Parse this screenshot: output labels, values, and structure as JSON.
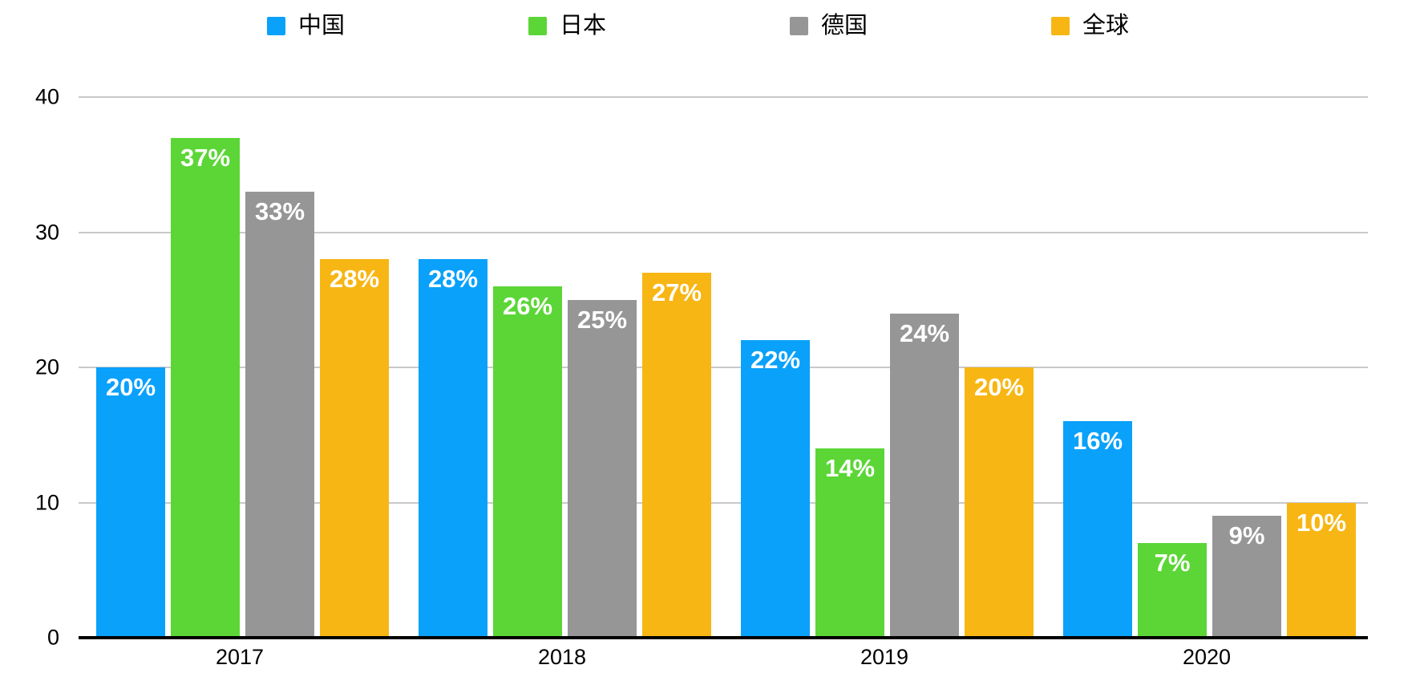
{
  "chart_data": {
    "type": "bar",
    "title": "",
    "xlabel": "",
    "ylabel": "",
    "categories": [
      "2017",
      "2018",
      "2019",
      "2020"
    ],
    "series": [
      {
        "name": "中国",
        "color": "#0AA1FB",
        "values": [
          20,
          28,
          22,
          16
        ],
        "value_labels": [
          "20%",
          "28%",
          "22%",
          "16%"
        ]
      },
      {
        "name": "日本",
        "color": "#5BD636",
        "values": [
          37,
          26,
          14,
          7
        ],
        "value_labels": [
          "37%",
          "26%",
          "14%",
          "7%"
        ]
      },
      {
        "name": "德国",
        "color": "#969696",
        "values": [
          33,
          25,
          24,
          9
        ],
        "value_labels": [
          "33%",
          "25%",
          "24%",
          "9%"
        ]
      },
      {
        "name": "全球",
        "color": "#F7B614",
        "values": [
          28,
          27,
          20,
          10
        ],
        "value_labels": [
          "28%",
          "27%",
          "20%",
          "10%"
        ]
      }
    ],
    "ylim": [
      0,
      40
    ],
    "yticks": [
      0,
      10,
      20,
      30,
      40
    ],
    "ytick_labels": [
      "0",
      "10",
      "20",
      "30",
      "40"
    ],
    "grid": true,
    "legend_position": "top",
    "value_label_suffix": "%"
  },
  "colors": {
    "background": "#FFFFFF",
    "gridline": "#C9C9C9",
    "axis_line": "#000000",
    "tick_text": "#000000",
    "bar_label_text": "#FFFFFF"
  }
}
